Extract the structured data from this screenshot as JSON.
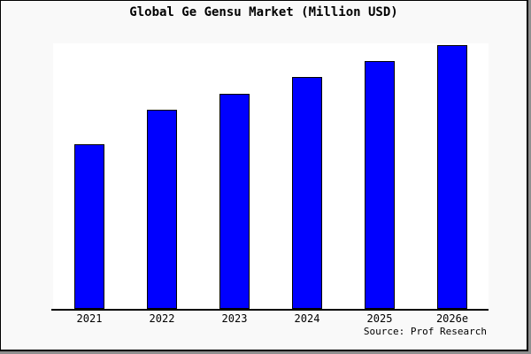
{
  "page": {
    "background_color": "#f9f9f9",
    "plot_background_color": "#ffffff",
    "border_color": "#000000",
    "shadow_color": "#8f8f8f"
  },
  "chart_data": {
    "type": "bar",
    "title": "Global Ge Gensu Market (Million USD)",
    "categories": [
      "2021",
      "2022",
      "2023",
      "2024",
      "2025",
      "2026e"
    ],
    "values": [
      186,
      225,
      243,
      262,
      280,
      298
    ],
    "values_note": "estimated relative units read from bar heights; no y-axis scale shown",
    "xlabel": "",
    "ylabel": "",
    "ylim": [
      0,
      300
    ],
    "grid": false,
    "legend": null,
    "bar_color": "#0000ff",
    "bar_edge_color": "#000000",
    "source": "Source: Prof Research"
  }
}
